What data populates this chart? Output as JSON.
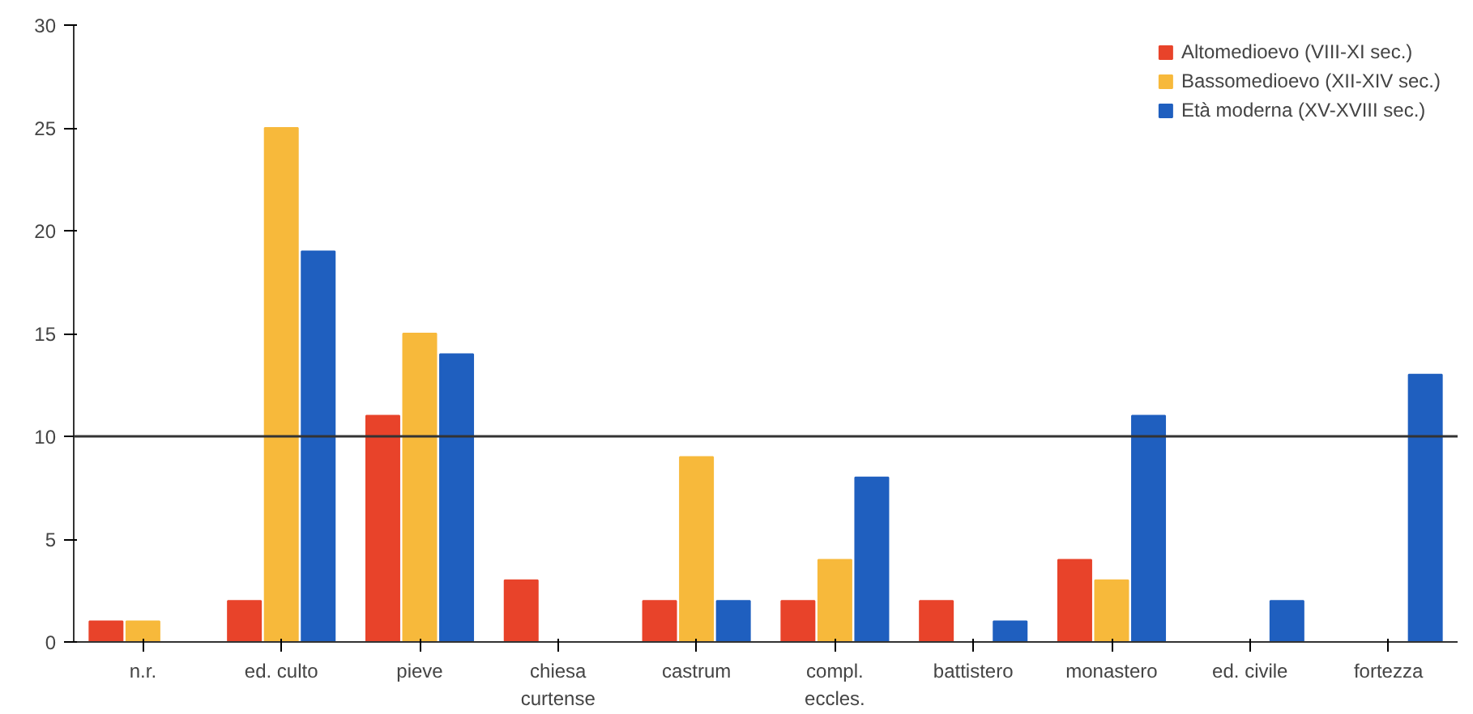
{
  "chart_data": {
    "type": "bar",
    "categories": [
      "n.r.",
      "ed. culto",
      "pieve",
      "chiesa curtense",
      "castrum",
      "compl. eccles.",
      "battistero",
      "monastero",
      "ed. civile",
      "fortezza"
    ],
    "series": [
      {
        "name": "Altomedioevo (VIII-XI sec.)",
        "color": "#e8432a",
        "values": [
          1,
          2,
          11,
          3,
          2,
          2,
          2,
          4,
          null,
          null
        ]
      },
      {
        "name": "Bassomedioevo (XII-XIV sec.)",
        "color": "#f7b93b",
        "values": [
          1,
          25,
          15,
          null,
          9,
          4,
          null,
          3,
          null,
          null
        ]
      },
      {
        "name": "Età moderna (XV-XVIII sec.)",
        "color": "#1f5fbf",
        "values": [
          null,
          19,
          14,
          null,
          2,
          8,
          1,
          11,
          2,
          13
        ]
      }
    ],
    "ylim": [
      0,
      30
    ],
    "yticks": [
      0,
      5,
      10,
      15,
      20,
      25,
      30
    ],
    "ref_lines": [
      {
        "axis": "y",
        "value": 10,
        "color": "#333333"
      }
    ],
    "grid": false,
    "legend": "top right"
  }
}
